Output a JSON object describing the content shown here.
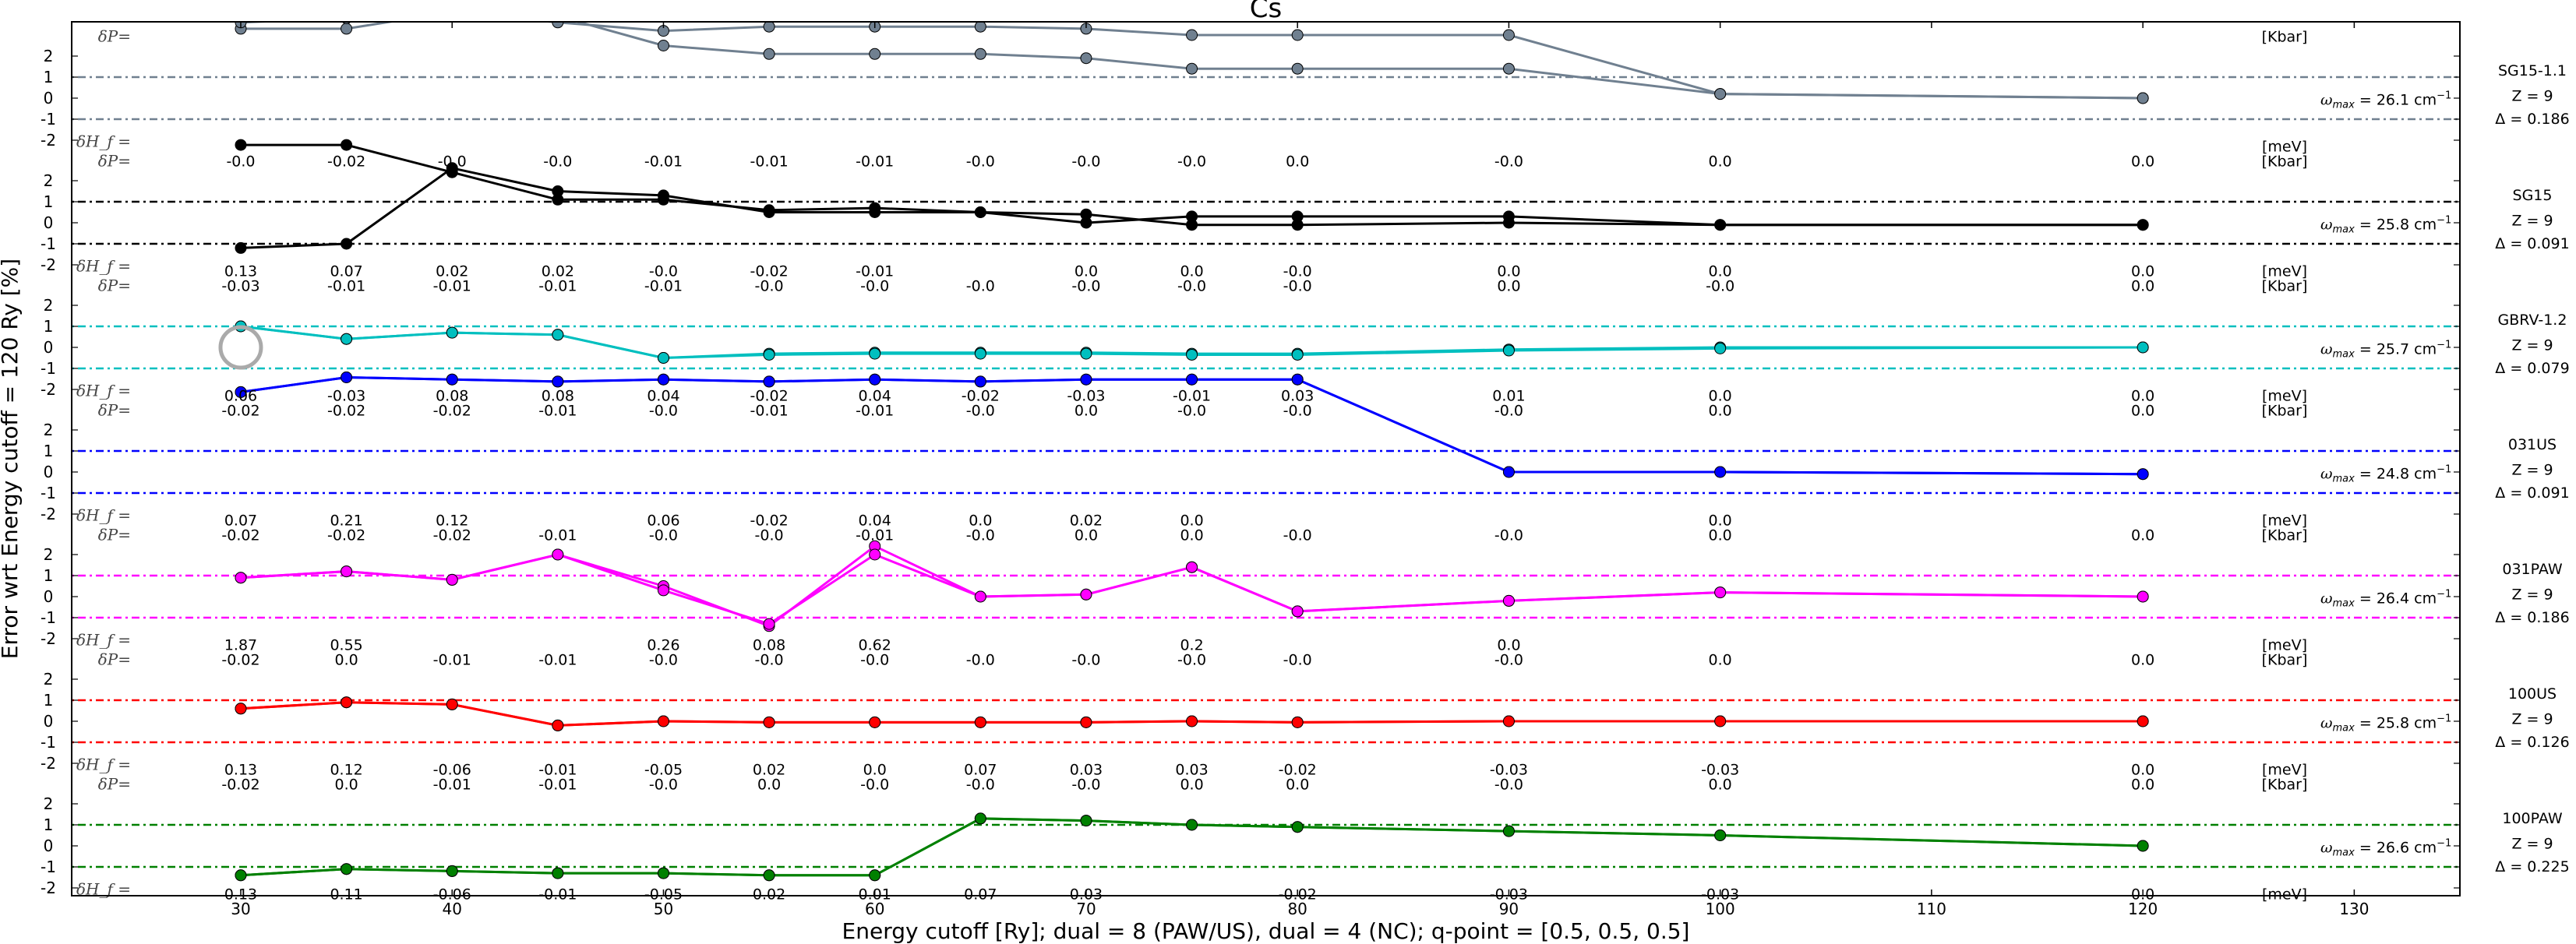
{
  "chart_data": {
    "type": "line",
    "title": "Cs",
    "xlabel": "Energy cutoff [Ry]; dual = 8 (PAW/US), dual = 4 (NC); q-point = [0.5, 0.5, 0.5]",
    "ylabel": "Error wrt Energy cutoff = 120 Ry [%]",
    "xlim": [
      22,
      135
    ],
    "xticks": [
      30,
      40,
      50,
      60,
      70,
      80,
      90,
      100,
      110,
      120,
      130
    ],
    "panel_yticks": [
      "2",
      "1",
      "0",
      "-1",
      "-2"
    ],
    "dP_label": "δP=",
    "dH_label": "δH_f =",
    "unit_P": "[Kbar]",
    "unit_H": "[meV]",
    "omega_prefix": "ω",
    "omega_sub": "max",
    "omega_unit": "cm",
    "omega_exp": "−1",
    "threshold_lines": [
      1,
      -1
    ],
    "panels": [
      {
        "name": "SG15-1.1",
        "z": "Z = 9",
        "delta": "Δ = 0.186",
        "omega": "26.1",
        "color": "#708090",
        "x": [
          30,
          35,
          40,
          45,
          50,
          55,
          60,
          65,
          70,
          75,
          80,
          90,
          100,
          120
        ],
        "y1": [
          3.3,
          3.3,
          4.1,
          3.6,
          3.2,
          3.4,
          3.4,
          3.4,
          3.3,
          3.0,
          3.0,
          3.0,
          0.2,
          0.0
        ],
        "y2": [
          3.6,
          3.8,
          4.3,
          3.9,
          2.5,
          2.1,
          2.1,
          2.1,
          1.9,
          1.4,
          1.4,
          1.4,
          0.2,
          0.0
        ],
        "dP": [],
        "dH": []
      },
      {
        "name": "SG15",
        "z": "Z = 9",
        "delta": "Δ = 0.091",
        "omega": "25.8",
        "color": "#000000",
        "x": [
          30,
          35,
          40,
          45,
          50,
          55,
          60,
          65,
          70,
          75,
          80,
          90,
          100,
          120
        ],
        "y1": [
          3.7,
          3.7,
          2.4,
          1.1,
          1.1,
          0.6,
          0.7,
          0.5,
          0.4,
          -0.1,
          -0.1,
          0.0,
          -0.1,
          -0.1
        ],
        "y2": [
          -1.2,
          -1.0,
          2.6,
          1.5,
          1.3,
          0.5,
          0.5,
          0.5,
          0.0,
          0.3,
          0.3,
          0.3,
          -0.1,
          -0.1
        ],
        "dP": [
          "-0.0",
          "-0.02",
          "-0.0",
          "-0.0",
          "-0.01",
          "-0.01",
          "-0.01",
          "-0.0",
          "-0.0",
          "-0.0",
          "0.0",
          "-0.0",
          "0.0",
          "0.0"
        ],
        "dH": [
          "0.13",
          "0.07",
          "0.02",
          "0.02",
          "-0.0",
          "-0.02",
          "-0.01",
          "",
          "0.0",
          "0.0",
          "-0.0",
          "0.0",
          "0.0",
          "0.0"
        ]
      },
      {
        "name": "GBRV-1.2",
        "z": "Z = 9",
        "delta": "Δ = 0.079",
        "omega": "25.7",
        "color": "#00bfbf",
        "x": [
          30,
          35,
          40,
          45,
          50,
          55,
          60,
          65,
          70,
          75,
          80,
          90,
          100,
          120
        ],
        "y1": [
          1.0,
          0.4,
          0.7,
          0.6,
          -0.5,
          -0.3,
          -0.25,
          -0.25,
          -0.25,
          -0.3,
          -0.3,
          -0.1,
          0.0,
          0.0
        ],
        "y2": [
          1.0,
          0.4,
          0.7,
          0.6,
          -0.5,
          -0.35,
          -0.3,
          -0.3,
          -0.3,
          -0.35,
          -0.35,
          -0.15,
          -0.05,
          0.0
        ],
        "dP": [
          "-0.03",
          "-0.01",
          "-0.01",
          "-0.01",
          "-0.01",
          "-0.0",
          "-0.0",
          "-0.0",
          "-0.0",
          "-0.0",
          "-0.0",
          "0.0",
          "-0.0",
          "0.0"
        ],
        "dH": [
          "0.06",
          "-0.03",
          "0.08",
          "0.08",
          "0.04",
          "-0.02",
          "0.04",
          "-0.02",
          "-0.03",
          "-0.01",
          "0.03",
          "0.01",
          "0.0",
          "0.0"
        ]
      },
      {
        "name": "031US",
        "z": "Z = 9",
        "delta": "Δ = 0.091",
        "omega": "24.8",
        "color": "#0000ff",
        "x": [
          30,
          35,
          40,
          45,
          50,
          55,
          60,
          65,
          70,
          75,
          80,
          90,
          100,
          120
        ],
        "y1": [
          3.8,
          4.5,
          4.4,
          4.3,
          4.4,
          4.3,
          4.4,
          4.3,
          4.4,
          4.4,
          4.4,
          0.0,
          0.0,
          -0.1
        ],
        "y2": [
          3.8,
          4.5,
          4.4,
          4.3,
          4.4,
          4.3,
          4.4,
          4.3,
          4.4,
          4.4,
          4.4,
          0.0,
          0.0,
          -0.1
        ],
        "dP": [
          "-0.02",
          "-0.02",
          "-0.02",
          "-0.01",
          "-0.0",
          "-0.01",
          "-0.01",
          "-0.0",
          "0.0",
          "-0.0",
          "-0.0",
          "-0.0",
          "0.0",
          "0.0"
        ],
        "dH": [
          "0.07",
          "0.21",
          "0.12",
          "",
          "0.06",
          "-0.02",
          "0.04",
          "0.0",
          "0.02",
          "0.0",
          "",
          "",
          "0.0",
          ""
        ]
      },
      {
        "name": "031PAW",
        "z": "Z = 9",
        "delta": "Δ = 0.186",
        "omega": "26.4",
        "color": "#ff00ff",
        "x": [
          30,
          35,
          40,
          45,
          50,
          55,
          60,
          65,
          70,
          75,
          80,
          90,
          100,
          120
        ],
        "y1": [
          0.9,
          1.2,
          0.8,
          2.0,
          0.5,
          -1.4,
          2.4,
          0.0,
          0.1,
          1.4,
          -0.7,
          -0.2,
          0.2,
          0.0
        ],
        "y2": [
          0.9,
          1.2,
          0.8,
          2.0,
          0.3,
          -1.3,
          2.0,
          0.0,
          0.1,
          1.4,
          -0.7,
          -0.2,
          0.2,
          0.0
        ],
        "dP": [
          "-0.02",
          "-0.02",
          "-0.02",
          "-0.01",
          "-0.0",
          "-0.0",
          "-0.01",
          "-0.0",
          "0.0",
          "0.0",
          "-0.0",
          "-0.0",
          "0.0",
          "0.0"
        ],
        "dH": [
          "1.87",
          "0.55",
          "",
          "",
          "0.26",
          "0.08",
          "0.62",
          "",
          "",
          "0.2",
          "",
          "0.0",
          "",
          ""
        ]
      },
      {
        "name": "100US",
        "z": "Z = 9",
        "delta": "Δ = 0.126",
        "omega": "25.8",
        "color": "#ff0000",
        "x": [
          30,
          35,
          40,
          45,
          50,
          55,
          60,
          65,
          70,
          75,
          80,
          90,
          100,
          120
        ],
        "y1": [
          0.6,
          0.9,
          0.8,
          -0.2,
          0.0,
          -0.05,
          -0.05,
          -0.05,
          -0.05,
          0.0,
          -0.05,
          0.0,
          0.0,
          0.0
        ],
        "y2": [
          0.6,
          0.9,
          0.8,
          -0.2,
          0.0,
          -0.05,
          -0.05,
          -0.05,
          -0.05,
          0.0,
          -0.05,
          0.0,
          0.0,
          0.0
        ],
        "dP": [
          "-0.02",
          "0.0",
          "-0.01",
          "-0.01",
          "-0.0",
          "-0.0",
          "-0.0",
          "-0.0",
          "-0.0",
          "-0.0",
          "-0.0",
          "-0.0",
          "0.0",
          "0.0"
        ],
        "dH": [
          "0.13",
          "0.12",
          "-0.06",
          "-0.01",
          "-0.05",
          "0.02",
          "0.0",
          "0.07",
          "0.03",
          "0.03",
          "-0.02",
          "-0.03",
          "-0.03",
          "0.0"
        ]
      },
      {
        "name": "100PAW",
        "z": "Z = 9",
        "delta": "Δ = 0.225",
        "omega": "26.6",
        "color": "#008000",
        "x": [
          30,
          35,
          40,
          45,
          50,
          55,
          60,
          65,
          70,
          75,
          80,
          90,
          100,
          120
        ],
        "y1": [
          -1.4,
          -1.1,
          -1.2,
          -1.3,
          -1.3,
          -1.4,
          -1.4,
          1.3,
          1.2,
          1.0,
          0.9,
          0.7,
          0.5,
          0.0
        ],
        "y2": [
          -1.4,
          -1.1,
          -1.2,
          -1.3,
          -1.3,
          -1.4,
          -1.4,
          1.3,
          1.2,
          1.0,
          0.9,
          0.7,
          0.5,
          0.0
        ],
        "dP": [
          "-0.02",
          "0.0",
          "-0.01",
          "-0.01",
          "-0.0",
          "0.0",
          "-0.0",
          "-0.0",
          "-0.0",
          "0.0",
          "0.0",
          "-0.0",
          "0.0",
          "0.0"
        ],
        "dH": [
          "0.13",
          "0.11",
          "-0.06",
          "-0.01",
          "-0.05",
          "0.02",
          "0.01",
          "0.07",
          "0.03",
          "",
          "-0.02",
          "-0.03",
          "-0.03",
          "0.0"
        ]
      }
    ]
  }
}
